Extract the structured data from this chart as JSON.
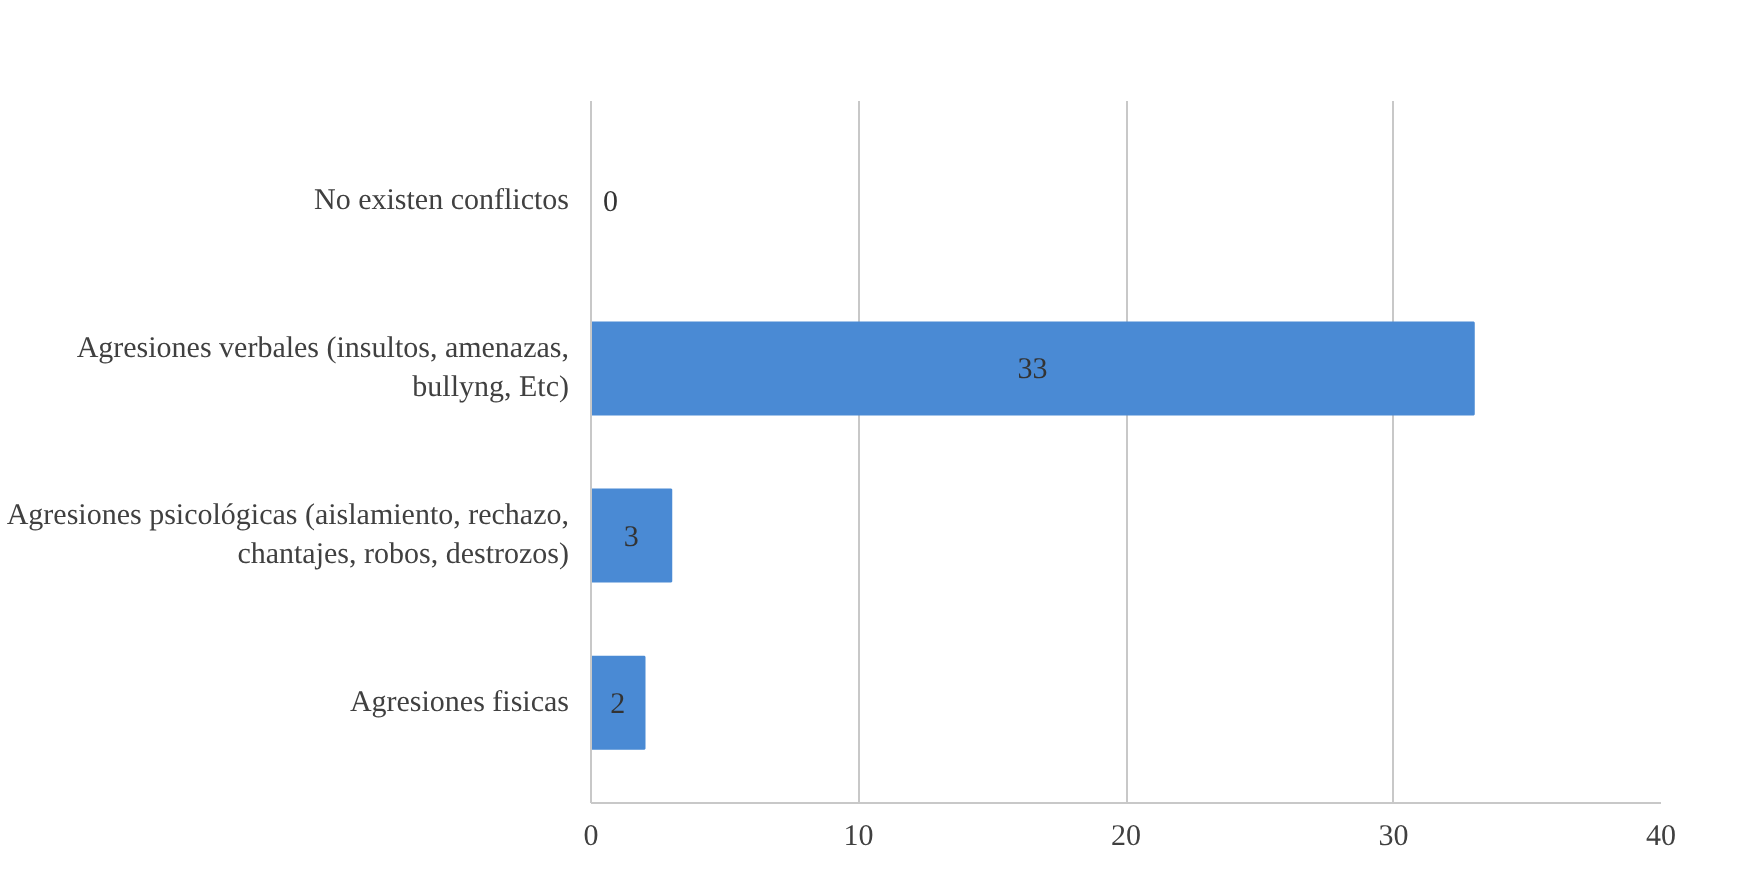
{
  "chart_data": {
    "type": "bar",
    "orientation": "horizontal",
    "categories": [
      "No existen conflictos",
      "Agresiones verbales (insultos, amenazas, bullyng, Etc)",
      "Agresiones psicológicas (aislamiento, rechazo, chantajes, robos, destrozos)",
      "Agresiones fisicas"
    ],
    "values": [
      0,
      33,
      3,
      2
    ],
    "colors": [
      "#1f3550",
      "#4a8ad4",
      "#4a8ad4",
      "#4a8ad4"
    ],
    "xlim": [
      0,
      40
    ],
    "xticks": [
      0,
      10,
      20,
      30,
      40
    ],
    "data_labels": true,
    "grid": "x"
  }
}
